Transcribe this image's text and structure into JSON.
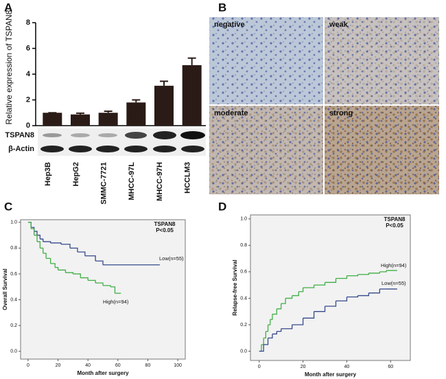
{
  "panel_labels": [
    "A",
    "B",
    "C",
    "D"
  ],
  "blot": {
    "bands": [
      "TSPAN8",
      "β-Actin"
    ]
  },
  "micrographs": [
    "negative",
    "weak",
    "moderate",
    "strong"
  ],
  "chart_data": [
    {
      "type": "bar",
      "y_label": "Relative expression of TSPAN8",
      "categories": [
        "Hep3B",
        "HepG2",
        "SMMC-7721",
        "MHCC-97L",
        "MHCC-97H",
        "HCCLM3"
      ],
      "values": [
        1,
        0.87,
        1.0,
        1.8,
        3.1,
        4.7
      ],
      "errors": [
        0,
        0.1,
        0.12,
        0.2,
        0.35,
        0.55
      ],
      "color": "#2b1b16",
      "ylim": [
        0,
        8
      ],
      "yticks": [
        0,
        2,
        4,
        6,
        8
      ]
    },
    {
      "type": "step",
      "x_label": "Month after surgery",
      "y_label": "Overall Survival",
      "annotation": [
        "TSPAN8",
        "P<0.05"
      ],
      "xlim": [
        -5,
        105
      ],
      "xticks": [
        0,
        20,
        40,
        60,
        80,
        100
      ],
      "ylim": [
        -0.06,
        1.02
      ],
      "yticks": [
        {
          "value": 0,
          "label": "0.0"
        },
        0.2,
        0.4,
        0.6,
        0.8,
        {
          "value": 1,
          "label": "1.0"
        }
      ],
      "series": [
        {
          "name": "Low(n=55)",
          "color": "#35488a",
          "x": [
            0,
            2,
            4,
            6,
            8,
            10,
            15,
            22,
            28,
            33,
            38,
            45,
            50,
            88
          ],
          "values": [
            1,
            0.96,
            0.93,
            0.9,
            0.87,
            0.85,
            0.84,
            0.83,
            0.8,
            0.77,
            0.74,
            0.7,
            0.67,
            0.67
          ]
        },
        {
          "name": "High(n=94)",
          "color": "#3fae45",
          "x": [
            0,
            2,
            4,
            6,
            8,
            10,
            12,
            15,
            18,
            20,
            25,
            30,
            35,
            40,
            45,
            50,
            55,
            58,
            62
          ],
          "values": [
            1,
            0.95,
            0.9,
            0.85,
            0.8,
            0.76,
            0.72,
            0.68,
            0.65,
            0.63,
            0.61,
            0.6,
            0.57,
            0.55,
            0.53,
            0.51,
            0.5,
            0.45,
            0.45
          ]
        }
      ]
    },
    {
      "type": "step",
      "x_label": "Month after surgery",
      "y_label": "Relapse-free Survival",
      "annotation": [
        "TSPAN8",
        "P<0.05"
      ],
      "xlim": [
        -4,
        69
      ],
      "xticks": [
        0,
        20,
        40,
        60
      ],
      "ylim": [
        -0.07,
        1.03
      ],
      "yticks": [
        {
          "value": 0,
          "label": "0.0"
        },
        0.2,
        0.4,
        0.6,
        0.8,
        {
          "value": 1,
          "label": "1.0"
        }
      ],
      "series": [
        {
          "name": "High(n=94)",
          "color": "#3fae45",
          "x": [
            0,
            1,
            2,
            3,
            4,
            5,
            6,
            8,
            10,
            12,
            15,
            18,
            20,
            25,
            30,
            35,
            40,
            45,
            50,
            55,
            58,
            63
          ],
          "values": [
            0,
            0.05,
            0.1,
            0.15,
            0.2,
            0.24,
            0.28,
            0.32,
            0.36,
            0.4,
            0.42,
            0.45,
            0.48,
            0.5,
            0.52,
            0.55,
            0.57,
            0.58,
            0.59,
            0.6,
            0.61,
            0.61
          ]
        },
        {
          "name": "Low(n=55)",
          "color": "#35488a",
          "x": [
            0,
            2,
            4,
            6,
            8,
            10,
            15,
            20,
            25,
            30,
            35,
            40,
            45,
            50,
            55,
            58,
            63
          ],
          "values": [
            0,
            0.05,
            0.1,
            0.13,
            0.15,
            0.17,
            0.2,
            0.25,
            0.3,
            0.34,
            0.38,
            0.41,
            0.42,
            0.44,
            0.47,
            0.47,
            0.47
          ]
        }
      ]
    }
  ]
}
